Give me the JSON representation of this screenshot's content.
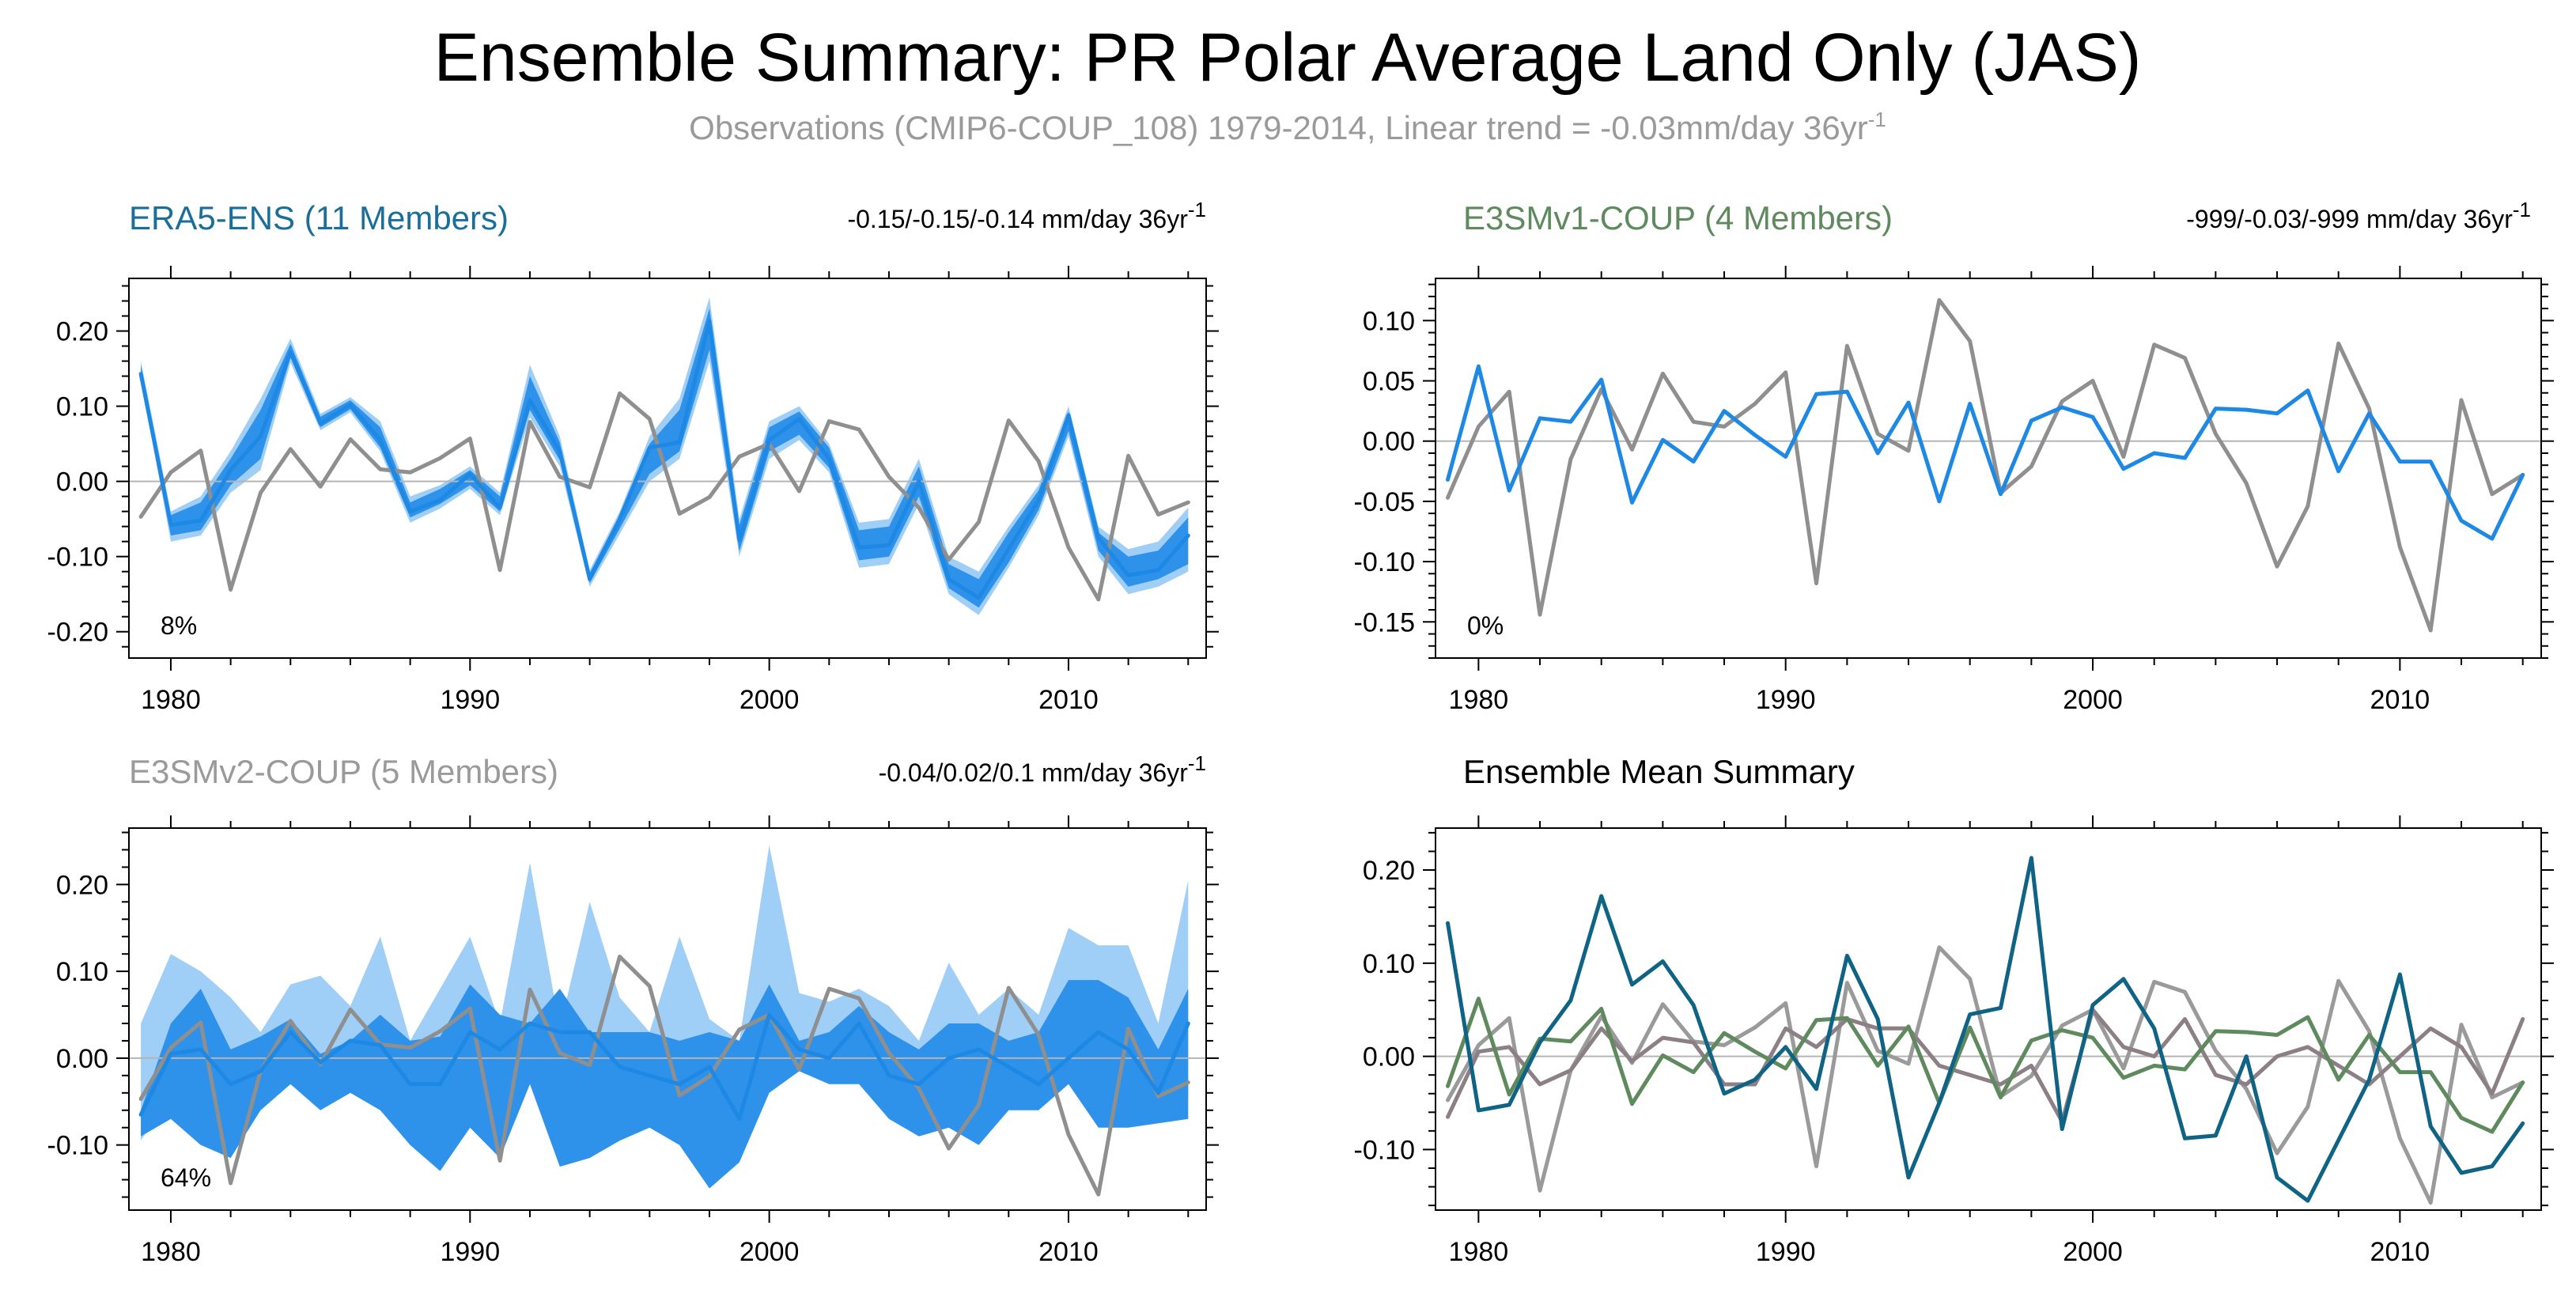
{
  "figure": {
    "title": "Ensemble Summary: PR Polar Average Land Only (JAS)",
    "subtitle": "Observations (CMIP6-COUP_108) 1979-2014, Linear trend = -0.03mm/day 36yr",
    "subtitle_sup": "-1"
  },
  "chart_data": [
    {
      "id": "era5",
      "type": "line",
      "title": "ERA5-ENS (11 Members)",
      "title_color": "#1a6e99",
      "trend_label": "-0.15/-0.15/-0.14 mm/day 36yr",
      "trend_sup": "-1",
      "percent_label": "8%",
      "x": [
        1979,
        1980,
        1981,
        1982,
        1983,
        1984,
        1985,
        1986,
        1987,
        1988,
        1989,
        1990,
        1991,
        1992,
        1993,
        1994,
        1995,
        1996,
        1997,
        1998,
        1999,
        2000,
        2001,
        2002,
        2003,
        2004,
        2005,
        2006,
        2007,
        2008,
        2009,
        2010,
        2011,
        2012,
        2013,
        2014
      ],
      "ylim": [
        -0.235,
        0.27
      ],
      "yticks": [
        -0.2,
        -0.1,
        0.0,
        0.1,
        0.2
      ],
      "ytick_labels": [
        "-0.20",
        "-0.10",
        "0.00",
        "0.10",
        "0.20"
      ],
      "xticks": [
        1980,
        1990,
        2000,
        2010
      ],
      "xtick_labels": [
        "1980",
        "1990",
        "2000",
        "2010"
      ],
      "bands": [
        {
          "name": "full range",
          "color": "#9fcef7",
          "low": [
            0.135,
            -0.08,
            -0.072,
            -0.015,
            0.015,
            0.158,
            0.068,
            0.092,
            0.04,
            -0.055,
            -0.036,
            -0.01,
            -0.045,
            0.085,
            0.02,
            -0.14,
            -0.07,
            0.0,
            0.03,
            0.16,
            -0.1,
            0.03,
            0.055,
            0.012,
            -0.115,
            -0.11,
            -0.03,
            -0.15,
            -0.178,
            -0.115,
            -0.045,
            0.06,
            -0.1,
            -0.15,
            -0.14,
            -0.12
          ],
          "high": [
            0.16,
            -0.04,
            -0.02,
            0.04,
            0.11,
            0.19,
            0.09,
            0.112,
            0.08,
            -0.02,
            -0.005,
            0.02,
            -0.015,
            0.155,
            0.06,
            -0.118,
            -0.04,
            0.06,
            0.11,
            0.245,
            -0.05,
            0.08,
            0.1,
            0.05,
            -0.055,
            -0.05,
            0.03,
            -0.1,
            -0.12,
            -0.06,
            -0.005,
            0.1,
            -0.06,
            -0.09,
            -0.08,
            -0.035
          ]
        },
        {
          "name": "interquartile range",
          "color": "#2e92ea",
          "low": [
            0.138,
            -0.072,
            -0.065,
            -0.005,
            0.03,
            0.165,
            0.072,
            0.096,
            0.045,
            -0.048,
            -0.03,
            -0.005,
            -0.04,
            0.095,
            0.028,
            -0.135,
            -0.063,
            0.01,
            0.04,
            0.175,
            -0.093,
            0.04,
            0.062,
            0.018,
            -0.105,
            -0.1,
            -0.02,
            -0.142,
            -0.168,
            -0.108,
            -0.038,
            0.067,
            -0.092,
            -0.14,
            -0.13,
            -0.11
          ],
          "high": [
            0.155,
            -0.045,
            -0.028,
            0.03,
            0.095,
            0.183,
            0.086,
            0.108,
            0.072,
            -0.028,
            -0.01,
            0.015,
            -0.02,
            0.14,
            0.052,
            -0.122,
            -0.045,
            0.05,
            0.095,
            0.23,
            -0.058,
            0.072,
            0.093,
            0.045,
            -0.065,
            -0.06,
            0.02,
            -0.11,
            -0.13,
            -0.068,
            -0.012,
            0.093,
            -0.068,
            -0.1,
            -0.092,
            -0.048
          ]
        }
      ],
      "series": [
        {
          "name": "Observations (CMIP6-COUP_108)",
          "color": "#8f8f8f",
          "values": [
            -0.047,
            0.012,
            0.041,
            -0.144,
            -0.015,
            0.043,
            -0.007,
            0.056,
            0.016,
            0.012,
            0.031,
            0.057,
            -0.118,
            0.079,
            0.006,
            -0.008,
            0.117,
            0.083,
            -0.043,
            -0.021,
            0.033,
            0.05,
            -0.013,
            0.08,
            0.069,
            0.006,
            -0.035,
            -0.104,
            -0.054,
            0.081,
            0.027,
            -0.088,
            -0.157,
            0.034,
            -0.044,
            -0.028
          ]
        },
        {
          "name": "Ensemble mean",
          "color": "#1e88e5",
          "values": [
            0.143,
            -0.058,
            -0.052,
            0.015,
            0.06,
            0.172,
            0.077,
            0.102,
            0.055,
            -0.04,
            -0.025,
            0.01,
            -0.035,
            0.108,
            0.04,
            -0.13,
            -0.05,
            0.045,
            0.052,
            0.213,
            -0.078,
            0.055,
            0.083,
            0.03,
            -0.088,
            -0.085,
            0.0,
            -0.13,
            -0.155,
            -0.09,
            -0.025,
            0.088,
            -0.075,
            -0.125,
            -0.118,
            -0.072
          ]
        }
      ]
    },
    {
      "id": "e3smv1",
      "type": "line",
      "title": "E3SMv1-COUP (4 Members)",
      "title_color": "#5e8a5e",
      "trend_label": "-999/-0.03/-999 mm/day 36yr",
      "trend_sup": "-1",
      "percent_label": "0%",
      "x": [
        1979,
        1980,
        1981,
        1982,
        1983,
        1984,
        1985,
        1986,
        1987,
        1988,
        1989,
        1990,
        1991,
        1992,
        1993,
        1994,
        1995,
        1996,
        1997,
        1998,
        1999,
        2000,
        2001,
        2002,
        2003,
        2004,
        2005,
        2006,
        2007,
        2008,
        2009,
        2010,
        2011,
        2012,
        2013,
        2014
      ],
      "ylim": [
        -0.18,
        0.135
      ],
      "yticks": [
        -0.15,
        -0.1,
        -0.05,
        0.0,
        0.05,
        0.1
      ],
      "ytick_labels": [
        "-0.15",
        "-0.10",
        "-0.05",
        "0.00",
        "0.05",
        "0.10"
      ],
      "xticks": [
        1980,
        1990,
        2000,
        2010
      ],
      "xtick_labels": [
        "1980",
        "1990",
        "2000",
        "2010"
      ],
      "bands": [],
      "series": [
        {
          "name": "Observations (CMIP6-COUP_108)",
          "color": "#8f8f8f",
          "values": [
            -0.047,
            0.012,
            0.041,
            -0.144,
            -0.015,
            0.043,
            -0.007,
            0.056,
            0.016,
            0.012,
            0.031,
            0.057,
            -0.118,
            0.079,
            0.006,
            -0.008,
            0.117,
            0.083,
            -0.043,
            -0.021,
            0.033,
            0.05,
            -0.013,
            0.08,
            0.069,
            0.006,
            -0.035,
            -0.104,
            -0.054,
            0.081,
            0.027,
            -0.088,
            -0.157,
            0.034,
            -0.044,
            -0.028
          ]
        },
        {
          "name": "Ensemble mean",
          "color": "#1e88e5",
          "values": [
            -0.032,
            0.062,
            -0.041,
            0.019,
            0.016,
            0.051,
            -0.051,
            0.001,
            -0.017,
            0.025,
            0.005,
            -0.013,
            0.039,
            0.041,
            -0.01,
            0.032,
            -0.05,
            0.031,
            -0.044,
            0.017,
            0.028,
            0.02,
            -0.023,
            -0.01,
            -0.014,
            0.027,
            0.026,
            0.023,
            0.042,
            -0.025,
            0.023,
            -0.017,
            -0.017,
            -0.066,
            -0.081,
            -0.028
          ]
        }
      ]
    },
    {
      "id": "e3smv2",
      "type": "line",
      "title": "E3SMv2-COUP (5 Members)",
      "title_color": "#9a9a9a",
      "trend_label": "-0.04/0.02/0.1 mm/day 36yr",
      "trend_sup": "-1",
      "percent_label": "64%",
      "x": [
        1979,
        1980,
        1981,
        1982,
        1983,
        1984,
        1985,
        1986,
        1987,
        1988,
        1989,
        1990,
        1991,
        1992,
        1993,
        1994,
        1995,
        1996,
        1997,
        1998,
        1999,
        2000,
        2001,
        2002,
        2003,
        2004,
        2005,
        2006,
        2007,
        2008,
        2009,
        2010,
        2011,
        2012,
        2013,
        2014
      ],
      "ylim": [
        -0.175,
        0.265
      ],
      "yticks": [
        -0.1,
        0.0,
        0.1,
        0.2
      ],
      "ytick_labels": [
        "-0.10",
        "0.00",
        "0.10",
        "0.20"
      ],
      "xticks": [
        1980,
        1990,
        2000,
        2010
      ],
      "xtick_labels": [
        "1980",
        "1990",
        "2000",
        "2010"
      ],
      "bands": [
        {
          "name": "full range",
          "color": "#9fcef7",
          "low": [
            -0.095,
            -0.04,
            -0.06,
            -0.09,
            -0.03,
            -0.01,
            -0.045,
            -0.02,
            -0.03,
            -0.065,
            -0.08,
            -0.03,
            -0.11,
            -0.02,
            -0.08,
            -0.07,
            -0.08,
            -0.05,
            -0.06,
            -0.08,
            -0.07,
            -0.03,
            -0.01,
            -0.01,
            -0.02,
            -0.05,
            -0.06,
            -0.07,
            -0.06,
            -0.04,
            -0.04,
            -0.03,
            -0.07,
            -0.06,
            -0.05,
            -0.05
          ],
          "high": [
            0.04,
            0.12,
            0.1,
            0.07,
            0.03,
            0.085,
            0.095,
            0.06,
            0.14,
            0.02,
            0.08,
            0.14,
            0.04,
            0.225,
            0.035,
            0.18,
            0.07,
            0.03,
            0.14,
            0.045,
            0.02,
            0.245,
            0.075,
            0.065,
            0.08,
            0.06,
            0.02,
            0.11,
            0.05,
            0.08,
            0.05,
            0.15,
            0.13,
            0.13,
            0.04,
            0.205
          ]
        },
        {
          "name": "interquartile range",
          "color": "#2e92ea",
          "low": [
            -0.09,
            -0.07,
            -0.1,
            -0.115,
            -0.06,
            -0.03,
            -0.06,
            -0.04,
            -0.06,
            -0.1,
            -0.13,
            -0.08,
            -0.115,
            -0.03,
            -0.125,
            -0.115,
            -0.095,
            -0.08,
            -0.1,
            -0.15,
            -0.12,
            -0.04,
            -0.015,
            -0.03,
            -0.03,
            -0.07,
            -0.09,
            -0.08,
            -0.1,
            -0.06,
            -0.06,
            -0.03,
            -0.08,
            -0.08,
            -0.075,
            -0.07
          ],
          "high": [
            -0.06,
            0.04,
            0.08,
            0.01,
            0.025,
            0.045,
            0.005,
            0.02,
            0.05,
            0.02,
            0.025,
            0.085,
            0.05,
            0.04,
            0.08,
            0.03,
            0.03,
            0.03,
            0.02,
            0.03,
            0.02,
            0.085,
            0.02,
            0.03,
            0.06,
            0.03,
            0.01,
            0.04,
            0.04,
            0.02,
            0.03,
            0.09,
            0.09,
            0.07,
            0.01,
            0.08
          ]
        }
      ],
      "series": [
        {
          "name": "Observations (CMIP6-COUP_108)",
          "color": "#8f8f8f",
          "values": [
            -0.047,
            0.012,
            0.041,
            -0.144,
            -0.015,
            0.043,
            -0.007,
            0.056,
            0.016,
            0.012,
            0.031,
            0.057,
            -0.118,
            0.079,
            0.006,
            -0.008,
            0.117,
            0.083,
            -0.043,
            -0.021,
            0.033,
            0.05,
            -0.013,
            0.08,
            0.069,
            0.006,
            -0.035,
            -0.104,
            -0.054,
            0.081,
            0.027,
            -0.088,
            -0.157,
            0.034,
            -0.044,
            -0.028
          ]
        },
        {
          "name": "Ensemble mean",
          "color": "#1e88e5",
          "values": [
            -0.065,
            0.005,
            0.01,
            -0.03,
            -0.015,
            0.03,
            -0.005,
            0.02,
            0.015,
            -0.03,
            -0.03,
            0.03,
            0.01,
            0.04,
            0.03,
            0.03,
            -0.01,
            -0.02,
            -0.03,
            -0.01,
            -0.07,
            0.05,
            0.01,
            0.0,
            0.04,
            -0.02,
            -0.03,
            0.0,
            0.01,
            -0.01,
            -0.03,
            0.0,
            0.03,
            0.01,
            -0.04,
            0.04
          ]
        }
      ]
    },
    {
      "id": "summary",
      "type": "line",
      "title": "Ensemble Mean Summary",
      "title_color": "#000000",
      "trend_label": "",
      "trend_sup": "",
      "percent_label": "",
      "x": [
        1979,
        1980,
        1981,
        1982,
        1983,
        1984,
        1985,
        1986,
        1987,
        1988,
        1989,
        1990,
        1991,
        1992,
        1993,
        1994,
        1995,
        1996,
        1997,
        1998,
        1999,
        2000,
        2001,
        2002,
        2003,
        2004,
        2005,
        2006,
        2007,
        2008,
        2009,
        2010,
        2011,
        2012,
        2013,
        2014
      ],
      "ylim": [
        -0.165,
        0.245
      ],
      "yticks": [
        -0.1,
        0.0,
        0.1,
        0.2
      ],
      "ytick_labels": [
        "-0.10",
        "0.00",
        "0.10",
        "0.20"
      ],
      "xticks": [
        1980,
        1990,
        2000,
        2010
      ],
      "xtick_labels": [
        "1980",
        "1990",
        "2000",
        "2010"
      ],
      "bands": [],
      "series": [
        {
          "name": "Observations (CMIP6-COUP_108)",
          "color": "#9a9a9a",
          "values": [
            -0.047,
            0.012,
            0.041,
            -0.144,
            -0.015,
            0.043,
            -0.007,
            0.056,
            0.016,
            0.012,
            0.031,
            0.057,
            -0.118,
            0.079,
            0.006,
            -0.008,
            0.117,
            0.083,
            -0.043,
            -0.021,
            0.033,
            0.05,
            -0.013,
            0.08,
            0.069,
            0.006,
            -0.035,
            -0.104,
            -0.054,
            0.081,
            0.027,
            -0.088,
            -0.157,
            0.034,
            -0.044,
            -0.028
          ]
        },
        {
          "name": "E3SMv2-COUP",
          "color": "#8c7f86",
          "values": [
            -0.065,
            0.005,
            0.01,
            -0.03,
            -0.015,
            0.03,
            -0.005,
            0.02,
            0.015,
            -0.03,
            -0.03,
            0.03,
            0.01,
            0.04,
            0.03,
            0.03,
            -0.01,
            -0.02,
            -0.03,
            -0.01,
            -0.07,
            0.05,
            0.01,
            0.0,
            0.04,
            -0.02,
            -0.03,
            0.0,
            0.01,
            -0.01,
            -0.03,
            0.0,
            0.03,
            0.01,
            -0.04,
            0.04
          ]
        },
        {
          "name": "E3SMv1-COUP",
          "color": "#5e8a5e",
          "values": [
            -0.032,
            0.062,
            -0.041,
            0.019,
            0.016,
            0.051,
            -0.051,
            0.001,
            -0.017,
            0.025,
            0.005,
            -0.013,
            0.039,
            0.041,
            -0.01,
            0.032,
            -0.05,
            0.031,
            -0.044,
            0.017,
            0.028,
            0.02,
            -0.023,
            -0.01,
            -0.014,
            0.027,
            0.026,
            0.023,
            0.042,
            -0.025,
            0.023,
            -0.017,
            -0.017,
            -0.066,
            -0.081,
            -0.028
          ]
        },
        {
          "name": "ERA5-ENS",
          "color": "#0f6384",
          "values": [
            0.143,
            -0.058,
            -0.052,
            0.015,
            0.06,
            0.172,
            0.077,
            0.102,
            0.055,
            -0.04,
            -0.025,
            0.01,
            -0.035,
            0.108,
            0.04,
            -0.13,
            -0.05,
            0.045,
            0.052,
            0.213,
            -0.078,
            0.055,
            0.083,
            0.03,
            -0.088,
            -0.085,
            0.0,
            -0.13,
            -0.155,
            -0.09,
            -0.025,
            0.088,
            -0.075,
            -0.125,
            -0.118,
            -0.072
          ]
        }
      ]
    }
  ]
}
